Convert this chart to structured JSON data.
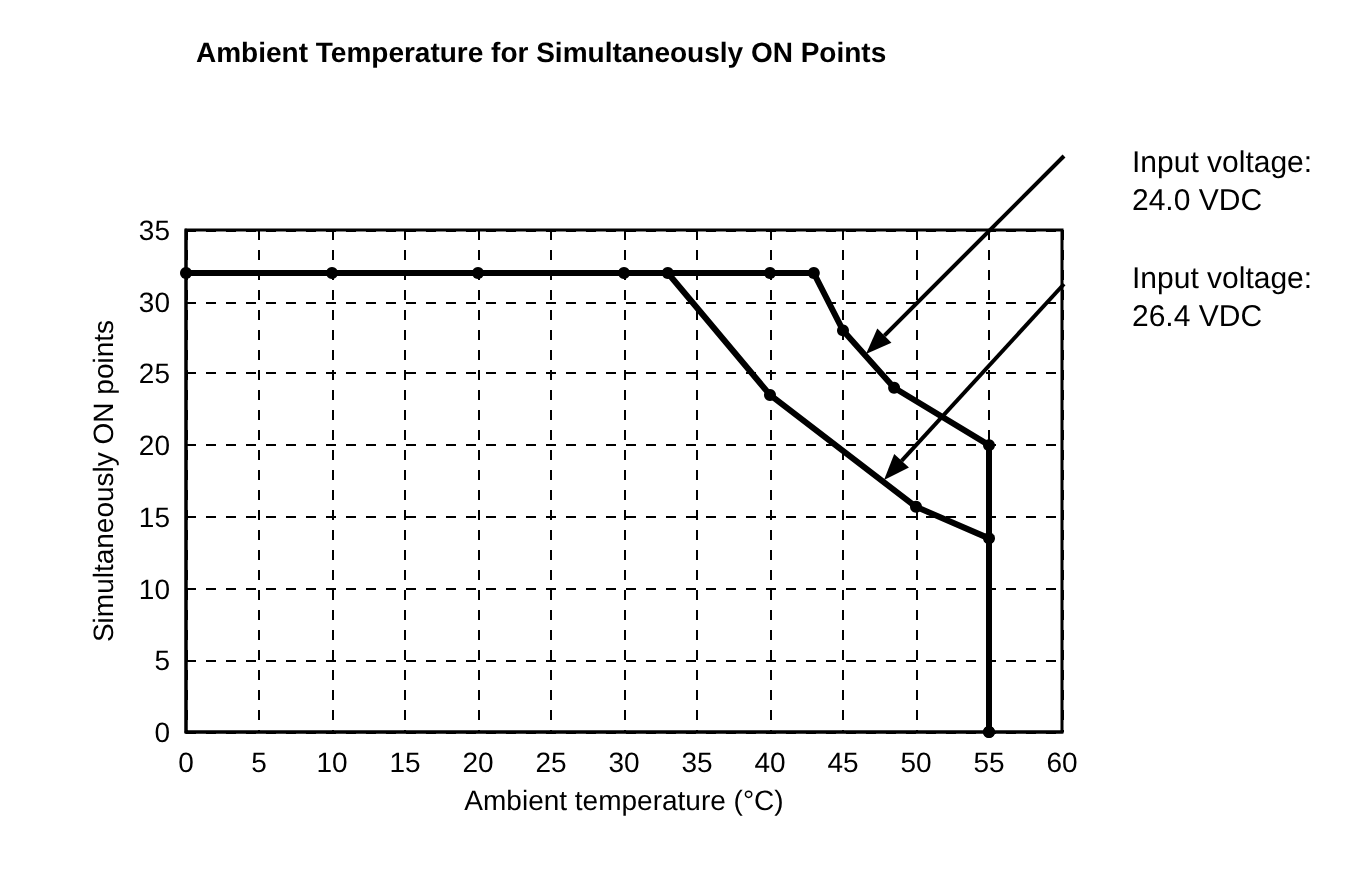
{
  "chart_data": {
    "type": "line",
    "title": "Ambient Temperature for Simultaneously ON Points",
    "xlabel": "Ambient temperature (°C)",
    "ylabel": "Simultaneously ON points",
    "xlim": [
      0,
      60
    ],
    "xticks": [
      0,
      5,
      10,
      15,
      20,
      25,
      30,
      35,
      40,
      45,
      50,
      55,
      60
    ],
    "ylim": [
      0,
      35
    ],
    "yticks": [
      0,
      5,
      10,
      15,
      20,
      25,
      30,
      35
    ],
    "grid": true,
    "marker": "circle",
    "line_style": "solid",
    "series": [
      {
        "color": "#000000",
        "x": [
          0,
          10,
          20,
          30,
          40,
          43,
          45,
          48.5,
          55,
          55
        ],
        "values": [
          32,
          32,
          32,
          32,
          32,
          32,
          28,
          24,
          20,
          0
        ]
      },
      {
        "color": "#000000",
        "x": [
          33,
          40,
          50,
          55,
          55
        ],
        "values": [
          32,
          23.5,
          15.7,
          13.5,
          0
        ]
      }
    ],
    "annotations": [
      "Input voltage:\n24.0 VDC",
      "Input voltage:\n26.4 VDC"
    ]
  }
}
